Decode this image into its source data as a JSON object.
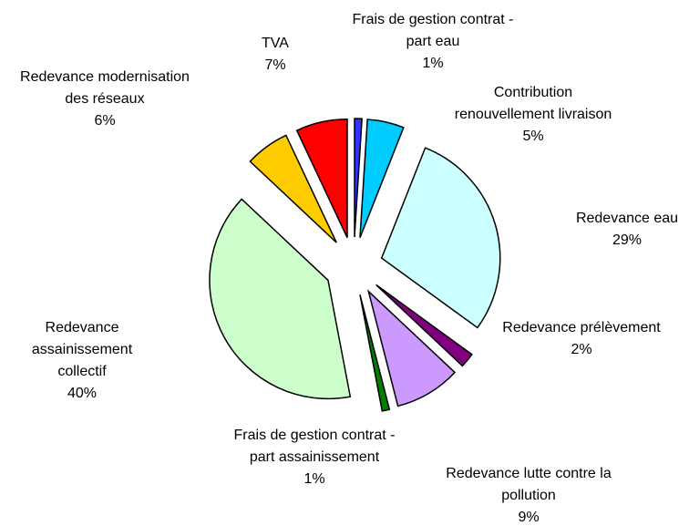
{
  "chart_data": {
    "type": "pie",
    "categories": [
      "Frais de gestion contrat -\npart eau",
      "Contribution\nrenouvellement livraison",
      "Redevance eau",
      "Redevance prélèvement",
      "Redevance lutte contre la\npollution",
      "Frais de gestion contrat -\npart assainissement",
      "Redevance\nassainissement\ncollectif",
      "Redevance modernisation\ndes réseaux",
      "TVA"
    ],
    "values": [
      1,
      5,
      29,
      2,
      9,
      1,
      40,
      6,
      7
    ],
    "value_labels": [
      "1%",
      "5%",
      "29%",
      "2%",
      "9%",
      "1%",
      "40%",
      "6%",
      "7%"
    ],
    "colors": [
      "#3333ff",
      "#00ccff",
      "#ccffff",
      "#800080",
      "#cc99ff",
      "#008000",
      "#ccffcc",
      "#ffcc00",
      "#ff0000"
    ]
  }
}
